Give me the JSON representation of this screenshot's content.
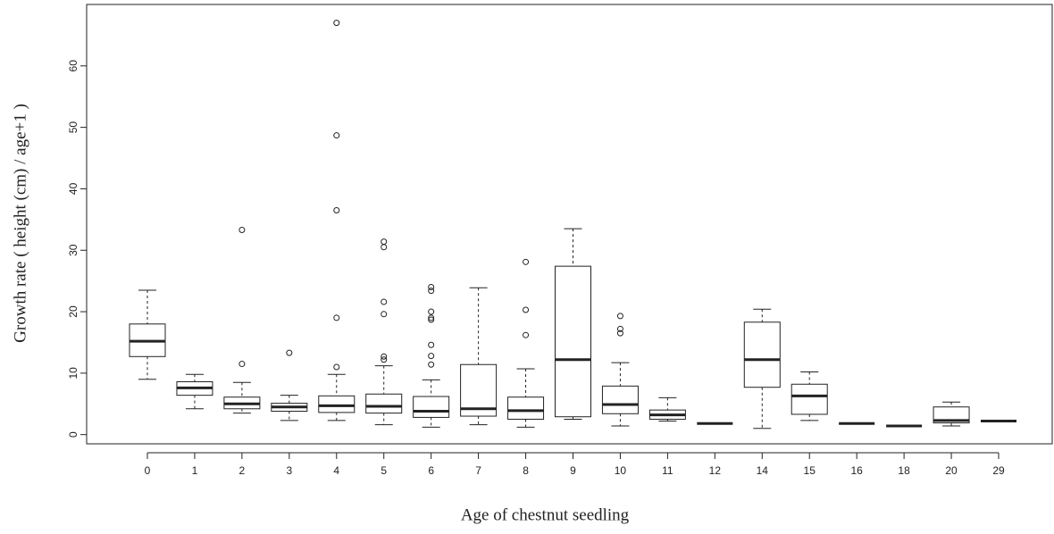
{
  "chart_data": {
    "type": "box",
    "xlabel": "Age of chestnut seedling",
    "ylabel": "Growth rate ( height (cm) / age+1 )",
    "categories": [
      "0",
      "1",
      "2",
      "3",
      "4",
      "5",
      "6",
      "7",
      "8",
      "9",
      "10",
      "11",
      "12",
      "14",
      "15",
      "16",
      "18",
      "20",
      "29"
    ],
    "boxes": [
      {
        "low": 9,
        "q1": 12.7,
        "median": 15.2,
        "q3": 18,
        "high": 23.5,
        "outliers": []
      },
      {
        "low": 4.2,
        "q1": 6.4,
        "median": 7.6,
        "q3": 8.6,
        "high": 9.8,
        "outliers": []
      },
      {
        "low": 3.5,
        "q1": 4.2,
        "median": 5,
        "q3": 6.1,
        "high": 8.5,
        "outliers": [
          11.5,
          33.3
        ]
      },
      {
        "low": 2.3,
        "q1": 3.8,
        "median": 4.5,
        "q3": 5.1,
        "high": 6.4,
        "outliers": [
          13.3
        ]
      },
      {
        "low": 2.3,
        "q1": 3.6,
        "median": 4.7,
        "q3": 6.3,
        "high": 9.8,
        "outliers": [
          11,
          19,
          36.5,
          48.7,
          67
        ]
      },
      {
        "low": 1.6,
        "q1": 3.5,
        "median": 4.6,
        "q3": 6.6,
        "high": 11.2,
        "outliers": [
          12.2,
          12.7,
          19.6,
          21.6,
          30.5,
          31.4
        ]
      },
      {
        "low": 1.2,
        "q1": 2.8,
        "median": 3.8,
        "q3": 6.2,
        "high": 8.9,
        "outliers": [
          11.4,
          12.8,
          14.6,
          18.7,
          19,
          20,
          23.4,
          24
        ]
      },
      {
        "low": 1.6,
        "q1": 3,
        "median": 4.2,
        "q3": 11.4,
        "high": 23.9,
        "outliers": []
      },
      {
        "low": 1.2,
        "q1": 2.5,
        "median": 3.9,
        "q3": 6.1,
        "high": 10.7,
        "outliers": [
          16.2,
          20.3,
          28.1
        ]
      },
      {
        "low": 2.5,
        "q1": 2.9,
        "median": 12.2,
        "q3": 27.4,
        "high": 33.5,
        "outliers": []
      },
      {
        "low": 1.4,
        "q1": 3.4,
        "median": 4.9,
        "q3": 7.9,
        "high": 11.7,
        "outliers": [
          16.5,
          17.2,
          19.3
        ]
      },
      {
        "low": 2.2,
        "q1": 2.5,
        "median": 3.2,
        "q3": 4,
        "high": 6,
        "outliers": []
      },
      {
        "low": 1.8,
        "q1": 1.8,
        "median": 1.8,
        "q3": 1.8,
        "high": 1.8,
        "outliers": []
      },
      {
        "low": 1,
        "q1": 7.7,
        "median": 12.2,
        "q3": 18.3,
        "high": 20.4,
        "outliers": []
      },
      {
        "low": 2.3,
        "q1": 3.3,
        "median": 6.3,
        "q3": 8.2,
        "high": 10.2,
        "outliers": []
      },
      {
        "low": 1.8,
        "q1": 1.8,
        "median": 1.8,
        "q3": 1.8,
        "high": 1.8,
        "outliers": []
      },
      {
        "low": 1.4,
        "q1": 1.4,
        "median": 1.4,
        "q3": 1.4,
        "high": 1.4,
        "outliers": []
      },
      {
        "low": 1.4,
        "q1": 1.9,
        "median": 2.3,
        "q3": 4.5,
        "high": 5.3,
        "outliers": []
      },
      {
        "low": 2.2,
        "q1": 2.2,
        "median": 2.2,
        "q3": 2.2,
        "high": 2.2,
        "outliers": []
      }
    ],
    "color": "#222222",
    "ylim": [
      -1.5,
      70
    ],
    "yticks": [
      0,
      10,
      20,
      30,
      40,
      50,
      60
    ]
  }
}
